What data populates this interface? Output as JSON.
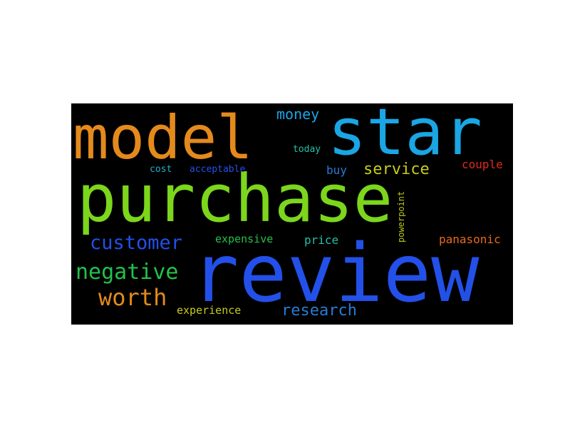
{
  "words": [
    {
      "text": "purchase",
      "color": "#7cd61c"
    },
    {
      "text": "review",
      "color": "#2250e8"
    },
    {
      "text": "model",
      "color": "#e48a1c"
    },
    {
      "text": "star",
      "color": "#1aa6e4"
    },
    {
      "text": "negative",
      "color": "#22c24a"
    },
    {
      "text": "worth",
      "color": "#e48a1c"
    },
    {
      "text": "customer",
      "color": "#2250e8"
    },
    {
      "text": "money",
      "color": "#1aa6e4"
    },
    {
      "text": "service",
      "color": "#c8cc18"
    },
    {
      "text": "research",
      "color": "#2a7ad4"
    },
    {
      "text": "couple",
      "color": "#e02a18"
    },
    {
      "text": "panasonic",
      "color": "#e86a18"
    },
    {
      "text": "expensive",
      "color": "#22c24a"
    },
    {
      "text": "price",
      "color": "#22c0a8"
    },
    {
      "text": "experience",
      "color": "#c8cc18"
    },
    {
      "text": "powerpoint",
      "color": "#b8c418"
    },
    {
      "text": "buy",
      "color": "#2a7ad4"
    },
    {
      "text": "today",
      "color": "#22c0a8"
    },
    {
      "text": "cost",
      "color": "#22b0c8"
    },
    {
      "text": "acceptable",
      "color": "#2250e8"
    }
  ]
}
